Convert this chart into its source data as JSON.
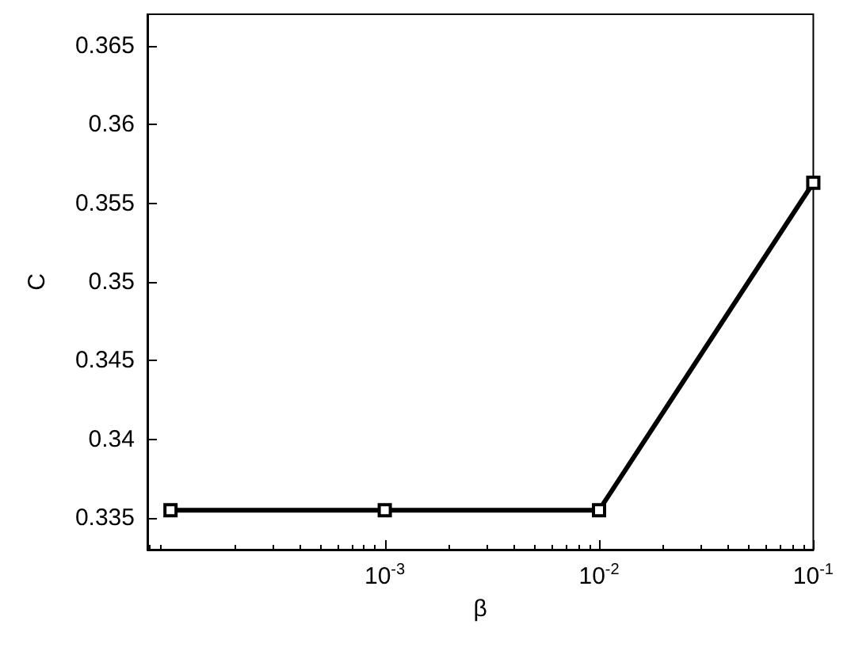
{
  "chart_data": {
    "type": "line",
    "xlabel": "β",
    "ylabel": "C",
    "log": "x",
    "x": [
      0.0001,
      0.001,
      0.01,
      0.1
    ],
    "series": [
      {
        "color": "#000000",
        "values": [
          0.3355,
          0.3355,
          0.3355,
          0.3563
        ]
      }
    ],
    "xlim": [
      7.8e-05,
      0.1
    ],
    "xticks": [
      {
        "value": 0.001,
        "label": "10$^{-3}$"
      },
      {
        "value": 0.01,
        "label": "10$^{-2}$"
      },
      {
        "value": 0.1,
        "label": "10$^{-1}$"
      }
    ],
    "ylim": [
      0.333,
      0.367
    ],
    "yticks": [
      0.335,
      0.34,
      0.345,
      0.35,
      0.355,
      0.36,
      0.365
    ],
    "grid": false,
    "marker": "square",
    "line_style": "solid"
  }
}
